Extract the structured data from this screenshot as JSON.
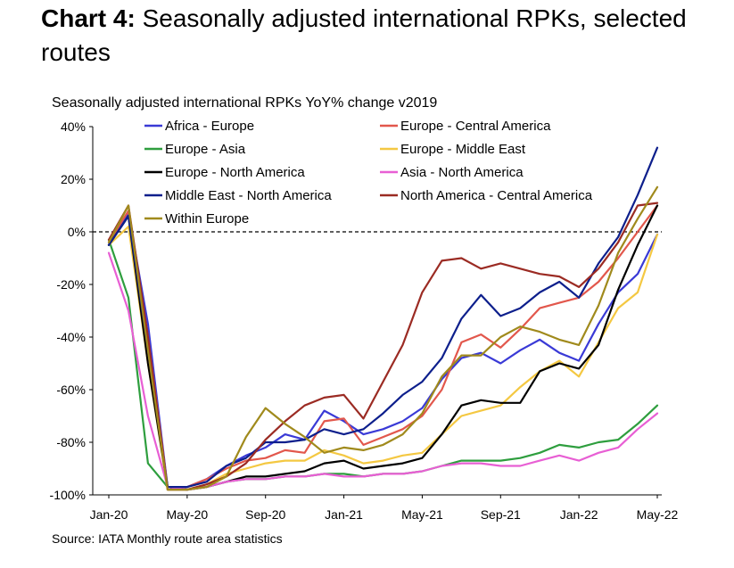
{
  "header": {
    "title_bold": "Chart 4:",
    "title_rest": "Seasonally adjusted international RPKs, selected routes"
  },
  "footer": {
    "source": "Source: IATA Monthly route area statistics"
  },
  "chart_data": {
    "type": "line",
    "title": "",
    "subtitle": "Seasonally adjusted international RPKs YoY% change v2019",
    "xlabel": "",
    "ylabel": "",
    "x_tick_labels": [
      "Jan-20",
      "May-20",
      "Sep-20",
      "Jan-21",
      "May-21",
      "Sep-21",
      "Jan-22",
      "May-22"
    ],
    "y_tick_labels": [
      "40%",
      "20%",
      "0%",
      "-20%",
      "-40%",
      "-60%",
      "-80%",
      "-100%"
    ],
    "ylim": [
      -100,
      40
    ],
    "reference_line": {
      "y": 0,
      "style": "dashed"
    },
    "grid": false,
    "legend_position": "top",
    "x": [
      "Jan-20",
      "Feb-20",
      "Mar-20",
      "Apr-20",
      "May-20",
      "Jun-20",
      "Jul-20",
      "Aug-20",
      "Sep-20",
      "Oct-20",
      "Nov-20",
      "Dec-20",
      "Jan-21",
      "Feb-21",
      "Mar-21",
      "Apr-21",
      "May-21",
      "Jun-21",
      "Jul-21",
      "Aug-21",
      "Sep-21",
      "Oct-21",
      "Nov-21",
      "Dec-21",
      "Jan-22",
      "Feb-22",
      "Mar-22",
      "Apr-22",
      "May-22"
    ],
    "series": [
      {
        "name": "Africa - Europe",
        "color": "#3a3ad6",
        "values": [
          -5,
          7,
          -35,
          -97,
          -97,
          -94,
          -89,
          -85,
          -82,
          -77,
          -79,
          -68,
          -72,
          -77,
          -75,
          -72,
          -67,
          -56,
          -48,
          -46,
          -50,
          -45,
          -41,
          -46,
          -49,
          -35,
          -23,
          -16,
          -1
        ]
      },
      {
        "name": "Europe - Central America",
        "color": "#e2574c",
        "values": [
          -4,
          8,
          -40,
          -97,
          -97,
          -94,
          -90,
          -87,
          -86,
          -83,
          -84,
          -72,
          -71,
          -81,
          -78,
          -75,
          -70,
          -60,
          -42,
          -39,
          -44,
          -37,
          -29,
          -27,
          -25,
          -19,
          -10,
          0,
          10
        ]
      },
      {
        "name": "Europe - Asia",
        "color": "#2e9e3e",
        "values": [
          -3,
          -25,
          -88,
          -97,
          -98,
          -97,
          -95,
          -94,
          -94,
          -93,
          -93,
          -92,
          -92,
          -93,
          -92,
          -92,
          -91,
          -89,
          -87,
          -87,
          -87,
          -86,
          -84,
          -81,
          -82,
          -80,
          -79,
          -73,
          -66
        ]
      },
      {
        "name": "Europe - Middle East",
        "color": "#f4c842",
        "values": [
          -5,
          2,
          -50,
          -98,
          -98,
          -96,
          -92,
          -90,
          -88,
          -87,
          -87,
          -83,
          -85,
          -88,
          -87,
          -85,
          -84,
          -77,
          -70,
          -68,
          -66,
          -59,
          -53,
          -49,
          -55,
          -42,
          -29,
          -23,
          -1
        ]
      },
      {
        "name": "Europe - North America",
        "color": "#000000",
        "values": [
          -5,
          6,
          -50,
          -97,
          -98,
          -97,
          -95,
          -93,
          -93,
          -92,
          -91,
          -88,
          -87,
          -90,
          -89,
          -88,
          -86,
          -77,
          -66,
          -64,
          -65,
          -65,
          -53,
          -50,
          -52,
          -43,
          -22,
          -5,
          10
        ]
      },
      {
        "name": "Asia - North America",
        "color": "#e85fd4",
        "values": [
          -8,
          -30,
          -70,
          -97,
          -98,
          -97,
          -95,
          -94,
          -94,
          -93,
          -93,
          -92,
          -93,
          -93,
          -92,
          -92,
          -91,
          -89,
          -88,
          -88,
          -89,
          -89,
          -87,
          -85,
          -87,
          -84,
          -82,
          -75,
          -69
        ]
      },
      {
        "name": "Middle East - North America",
        "color": "#0d1f8c",
        "values": [
          -5,
          6,
          -45,
          -97,
          -97,
          -95,
          -89,
          -86,
          -80,
          -80,
          -79,
          -75,
          -77,
          -75,
          -69,
          -62,
          -57,
          -48,
          -33,
          -24,
          -32,
          -29,
          -23,
          -19,
          -25,
          -12,
          -2,
          14,
          32
        ]
      },
      {
        "name": "North America - Central America",
        "color": "#9b2b23",
        "values": [
          -3,
          10,
          -40,
          -98,
          -98,
          -96,
          -93,
          -88,
          -79,
          -72,
          -66,
          -63,
          -62,
          -71,
          -57,
          -43,
          -23,
          -11,
          -10,
          -14,
          -12,
          -14,
          -16,
          -17,
          -21,
          -14,
          -4,
          10,
          11
        ]
      },
      {
        "name": "Within Europe",
        "color": "#a08a1c",
        "values": [
          -4,
          10,
          -45,
          -98,
          -98,
          -97,
          -93,
          -78,
          -67,
          -73,
          -78,
          -84,
          -82,
          -83,
          -81,
          -77,
          -69,
          -55,
          -47,
          -47,
          -40,
          -36,
          -38,
          -41,
          -43,
          -28,
          -8,
          5,
          17
        ]
      }
    ]
  }
}
